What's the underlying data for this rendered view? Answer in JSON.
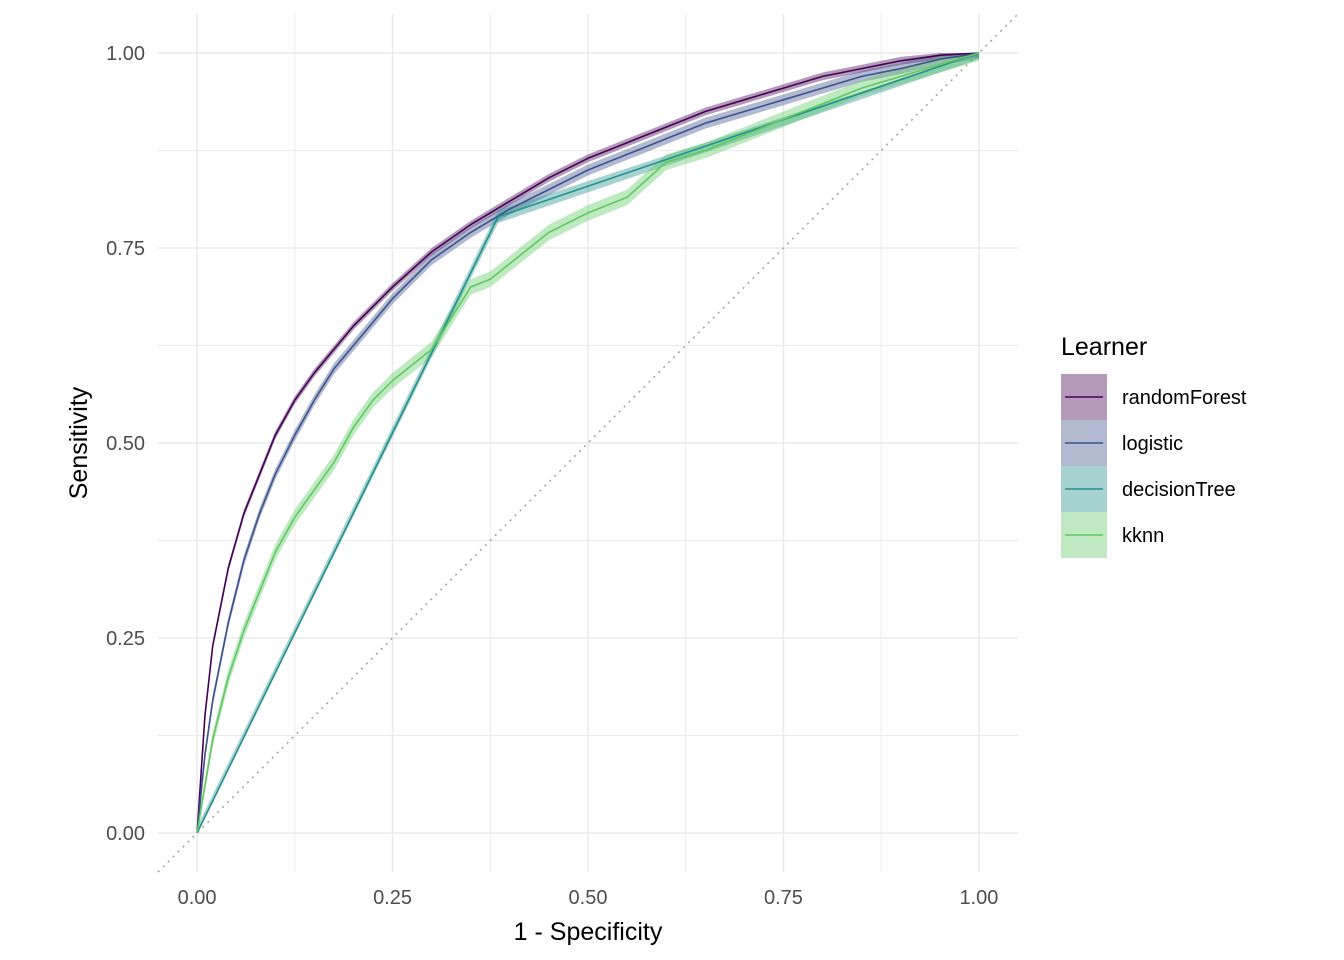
{
  "chart_data": {
    "type": "line",
    "xlabel": "1 - Specificity",
    "ylabel": "Sensitivity",
    "xlim": [
      -0.05,
      1.05
    ],
    "ylim": [
      -0.05,
      1.05
    ],
    "x_ticks": [
      0,
      0.25,
      0.5,
      0.75,
      1
    ],
    "y_ticks": [
      0,
      0.25,
      0.5,
      0.75,
      1
    ],
    "x_tick_labels": [
      "0.00",
      "0.25",
      "0.50",
      "0.75",
      "1.00"
    ],
    "y_tick_labels": [
      "0.00",
      "0.25",
      "0.50",
      "0.75",
      "1.00"
    ],
    "grid": true,
    "reference_line": "diagonal dotted",
    "legend": {
      "title": "Learner",
      "position": "right"
    },
    "series": [
      {
        "name": "randomForest",
        "color": "#440154",
        "band": 0.005,
        "points": [
          [
            0,
            0
          ],
          [
            0.01,
            0.15
          ],
          [
            0.02,
            0.24
          ],
          [
            0.04,
            0.34
          ],
          [
            0.06,
            0.41
          ],
          [
            0.08,
            0.46
          ],
          [
            0.1,
            0.51
          ],
          [
            0.125,
            0.555
          ],
          [
            0.15,
            0.59
          ],
          [
            0.175,
            0.62
          ],
          [
            0.2,
            0.65
          ],
          [
            0.25,
            0.7
          ],
          [
            0.3,
            0.745
          ],
          [
            0.35,
            0.78
          ],
          [
            0.4,
            0.81
          ],
          [
            0.45,
            0.84
          ],
          [
            0.5,
            0.865
          ],
          [
            0.55,
            0.885
          ],
          [
            0.6,
            0.905
          ],
          [
            0.65,
            0.925
          ],
          [
            0.7,
            0.94
          ],
          [
            0.75,
            0.955
          ],
          [
            0.8,
            0.97
          ],
          [
            0.85,
            0.98
          ],
          [
            0.9,
            0.99
          ],
          [
            0.95,
            0.997
          ],
          [
            1,
            1
          ]
        ]
      },
      {
        "name": "logistic",
        "color": "#3b528b",
        "band": 0.007,
        "points": [
          [
            0,
            0
          ],
          [
            0.01,
            0.1
          ],
          [
            0.02,
            0.17
          ],
          [
            0.04,
            0.27
          ],
          [
            0.06,
            0.35
          ],
          [
            0.08,
            0.41
          ],
          [
            0.1,
            0.46
          ],
          [
            0.125,
            0.51
          ],
          [
            0.15,
            0.555
          ],
          [
            0.175,
            0.595
          ],
          [
            0.2,
            0.625
          ],
          [
            0.25,
            0.685
          ],
          [
            0.3,
            0.735
          ],
          [
            0.35,
            0.77
          ],
          [
            0.4,
            0.8
          ],
          [
            0.45,
            0.825
          ],
          [
            0.5,
            0.85
          ],
          [
            0.55,
            0.87
          ],
          [
            0.6,
            0.89
          ],
          [
            0.65,
            0.91
          ],
          [
            0.7,
            0.925
          ],
          [
            0.75,
            0.94
          ],
          [
            0.8,
            0.955
          ],
          [
            0.85,
            0.97
          ],
          [
            0.9,
            0.98
          ],
          [
            0.95,
            0.992
          ],
          [
            1,
            1
          ]
        ]
      },
      {
        "name": "decisionTree",
        "color": "#21908c",
        "band": 0.008,
        "points": [
          [
            0,
            0
          ],
          [
            0.385,
            0.79
          ],
          [
            1,
            1
          ]
        ]
      },
      {
        "name": "kknn",
        "color": "#5ec962",
        "band": 0.01,
        "points": [
          [
            0,
            0
          ],
          [
            0.02,
            0.12
          ],
          [
            0.04,
            0.2
          ],
          [
            0.06,
            0.26
          ],
          [
            0.08,
            0.31
          ],
          [
            0.1,
            0.36
          ],
          [
            0.125,
            0.405
          ],
          [
            0.15,
            0.44
          ],
          [
            0.175,
            0.475
          ],
          [
            0.2,
            0.52
          ],
          [
            0.225,
            0.555
          ],
          [
            0.25,
            0.58
          ],
          [
            0.275,
            0.6
          ],
          [
            0.3,
            0.62
          ],
          [
            0.325,
            0.66
          ],
          [
            0.35,
            0.7
          ],
          [
            0.375,
            0.71
          ],
          [
            0.4,
            0.73
          ],
          [
            0.45,
            0.77
          ],
          [
            0.5,
            0.795
          ],
          [
            0.55,
            0.815
          ],
          [
            0.6,
            0.86
          ],
          [
            0.65,
            0.875
          ],
          [
            0.7,
            0.895
          ],
          [
            0.75,
            0.915
          ],
          [
            0.8,
            0.935
          ],
          [
            0.85,
            0.955
          ],
          [
            0.9,
            0.97
          ],
          [
            0.95,
            0.985
          ],
          [
            1,
            1
          ]
        ]
      }
    ]
  }
}
